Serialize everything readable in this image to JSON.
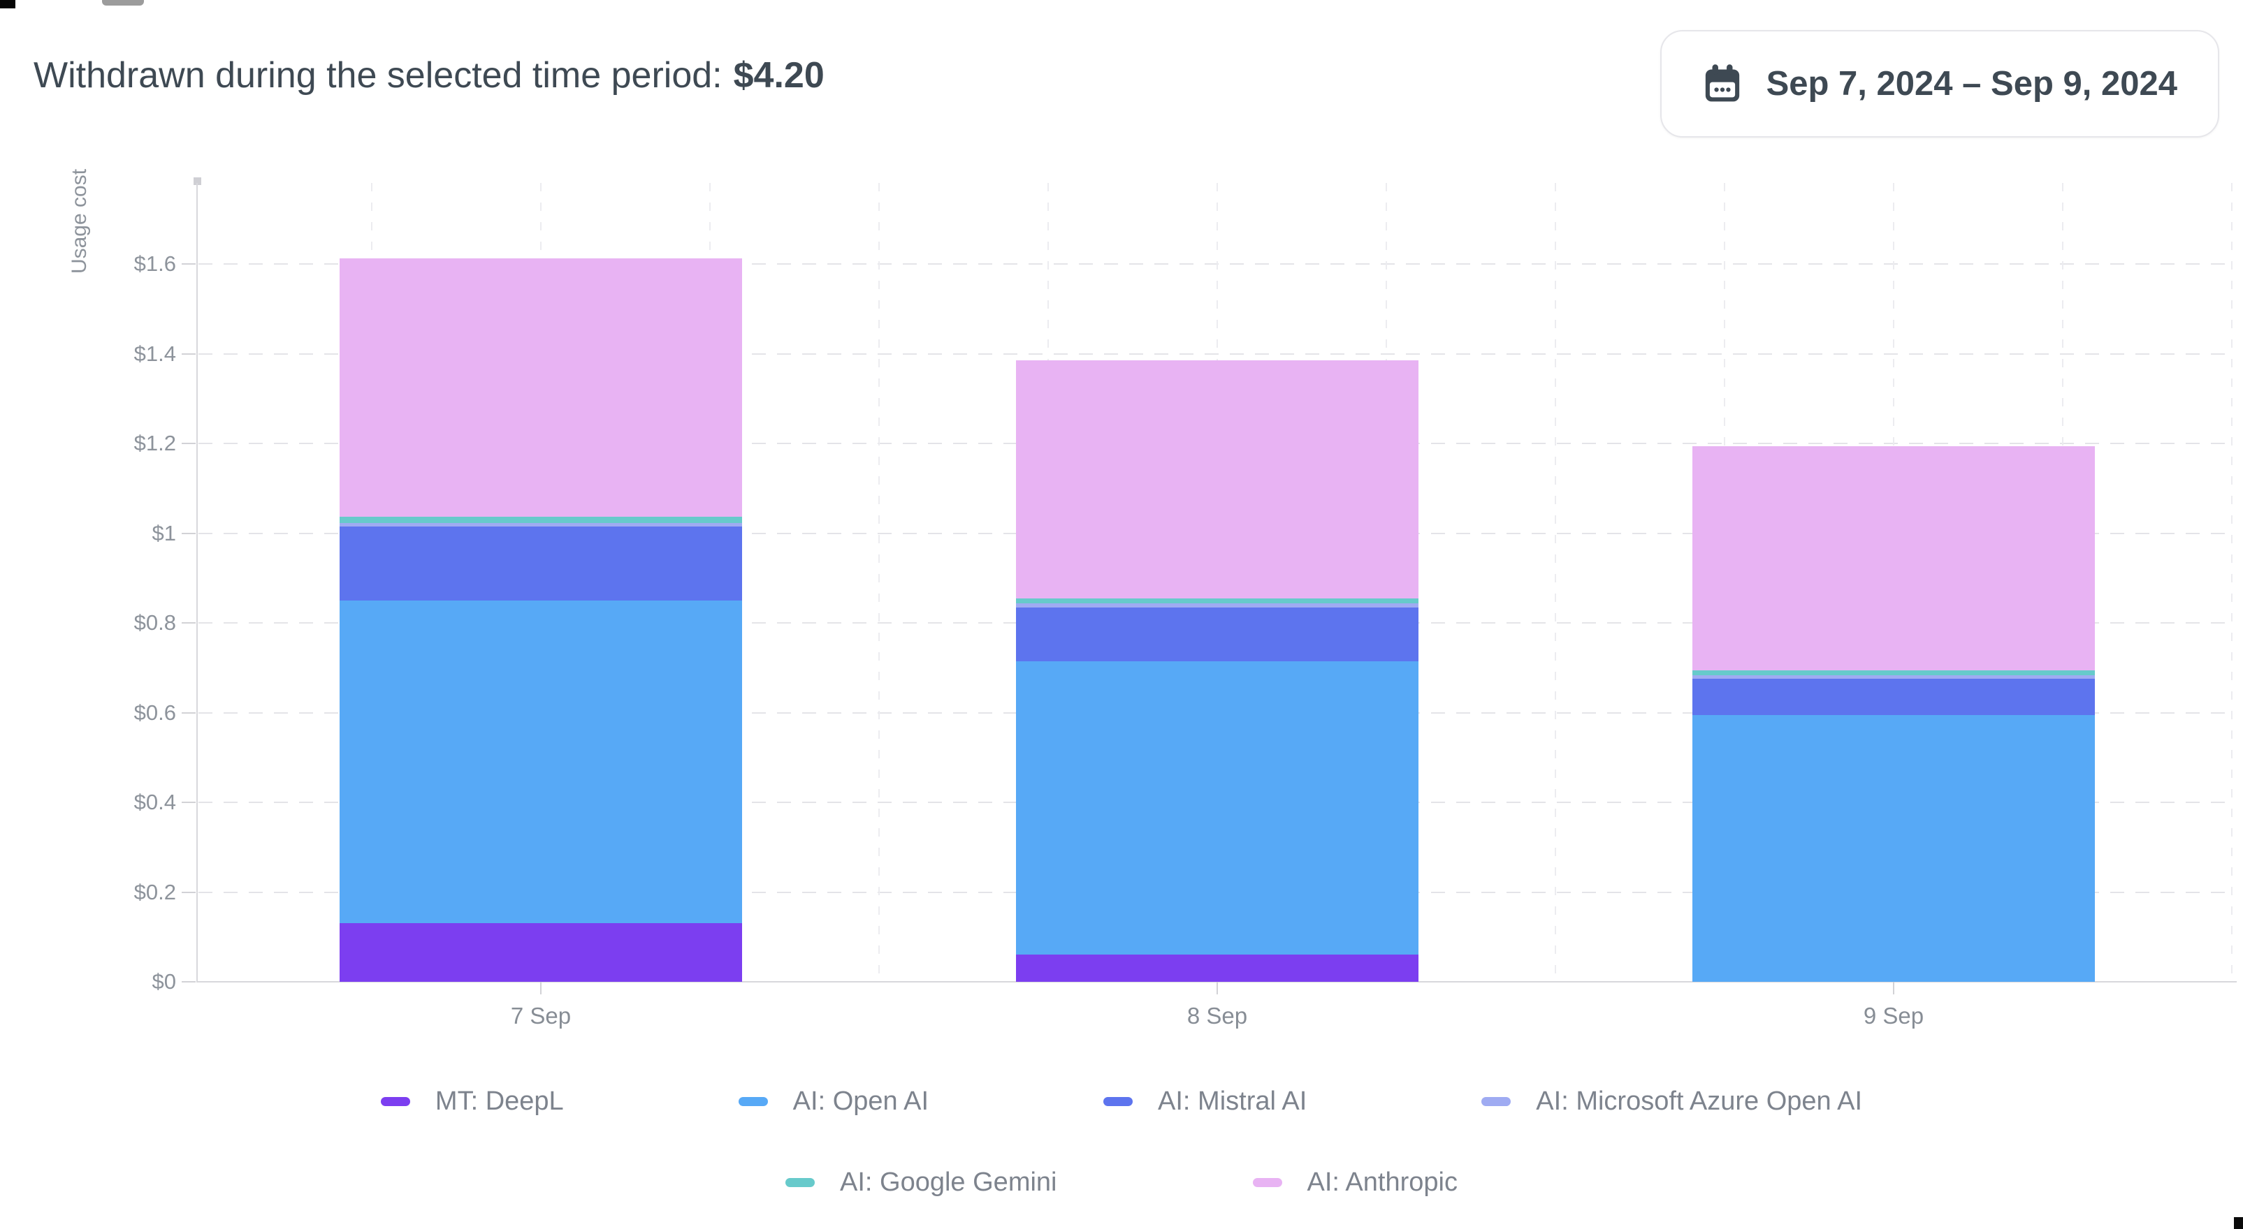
{
  "header": {
    "label": "Withdrawn during the selected time period:",
    "amount": "$4.20"
  },
  "date_range": {
    "icon": "calendar-icon",
    "label": "Sep 7, 2024 – Sep 9, 2024"
  },
  "chart_data": {
    "type": "bar",
    "stacked": true,
    "title": "",
    "xlabel": "",
    "ylabel": "Usage cost",
    "categories": [
      "7 Sep",
      "8 Sep",
      "9 Sep"
    ],
    "series": [
      {
        "name": "MT: DeepL",
        "color": "#7c3ef0",
        "values": [
          0.13,
          0.06,
          0
        ]
      },
      {
        "name": "AI: Open AI",
        "color": "#57a9f6",
        "values": [
          0.72,
          0.655,
          0.595
        ]
      },
      {
        "name": "AI: Mistral AI",
        "color": "#5d74ee",
        "values": [
          0.165,
          0.12,
          0.08
        ]
      },
      {
        "name": "AI: Microsoft Azure Open AI",
        "color": "#9fabf2",
        "values": [
          0.008,
          0.008,
          0.008
        ]
      },
      {
        "name": "AI: Google Gemini",
        "color": "#67cacb",
        "values": [
          0.014,
          0.011,
          0.011
        ]
      },
      {
        "name": "AI: Anthropic",
        "color": "#e8b3f3",
        "values": [
          0.575,
          0.532,
          0.5
        ]
      }
    ],
    "bar_totals": [
      1.62,
      1.39,
      1.2
    ],
    "y_ticks": [
      {
        "label": "$0",
        "value": 0
      },
      {
        "label": "$0.2",
        "value": 0.2
      },
      {
        "label": "$0.4",
        "value": 0.4
      },
      {
        "label": "$0.6",
        "value": 0.6
      },
      {
        "label": "$0.8",
        "value": 0.8
      },
      {
        "label": "$1",
        "value": 1
      },
      {
        "label": "$1.2",
        "value": 1.2
      },
      {
        "label": "$1.4",
        "value": 1.4
      },
      {
        "label": "$1.6",
        "value": 1.6
      }
    ],
    "ylim": [
      0,
      1.78
    ],
    "grid": true,
    "legend_position": "bottom",
    "legend_rows": [
      [
        0,
        1,
        2,
        3
      ],
      [
        4,
        5
      ]
    ]
  }
}
